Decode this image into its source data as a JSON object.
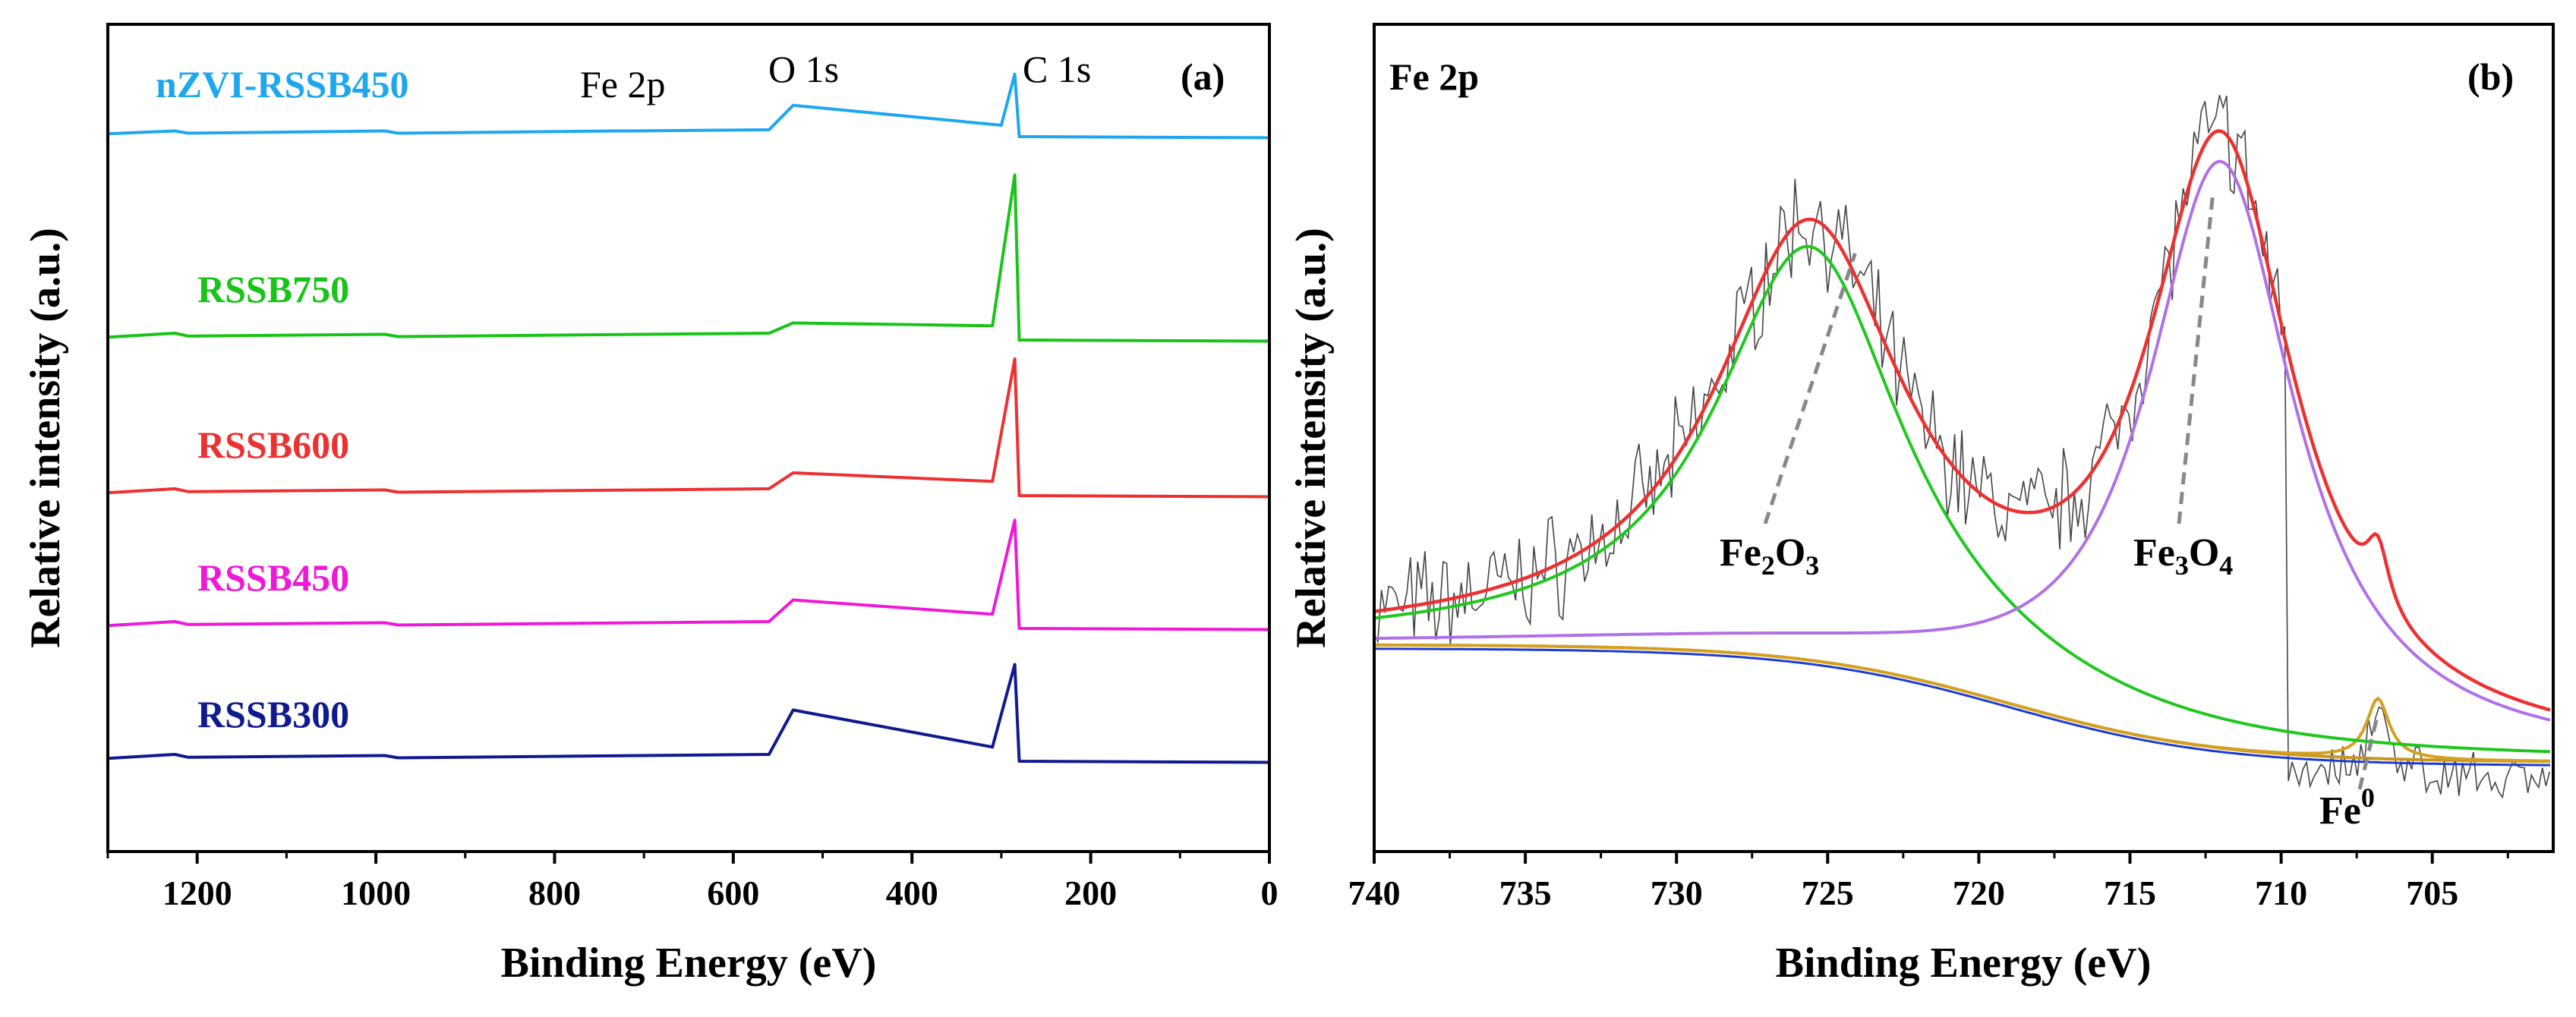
{
  "chart_data": [
    {
      "type": "line",
      "panel": "(a)",
      "xlabel": "Binding Energy (eV)",
      "ylabel": "Relative intensity (a.u.)",
      "xlim": [
        1300,
        0
      ],
      "x_ticks": [
        1200,
        1000,
        800,
        600,
        400,
        200,
        0
      ],
      "x_reversed": true,
      "series": [
        {
          "name": "nZVI-RSSB450",
          "color": "#1ea7ef",
          "offset": 4,
          "points": [
            [
              1300,
              0.05
            ],
            [
              1225,
              0.1
            ],
            [
              1210,
              0.06
            ],
            [
              990,
              0.1
            ],
            [
              975,
              0.06
            ],
            [
              730,
              0.1
            ],
            [
              710,
              0.1
            ],
            [
              560,
              0.12
            ],
            [
              533,
              0.55
            ],
            [
              300,
              0.2
            ],
            [
              285,
              1.1
            ],
            [
              280,
              0.0
            ],
            [
              0,
              -0.02
            ]
          ]
        },
        {
          "name": "RSSB750",
          "color": "#17c417",
          "offset": 3,
          "points": [
            [
              1300,
              0.05
            ],
            [
              1225,
              0.12
            ],
            [
              1210,
              0.07
            ],
            [
              990,
              0.1
            ],
            [
              975,
              0.06
            ],
            [
              560,
              0.12
            ],
            [
              533,
              0.3
            ],
            [
              310,
              0.25
            ],
            [
              285,
              2.9
            ],
            [
              280,
              0.0
            ],
            [
              0,
              -0.02
            ]
          ]
        },
        {
          "name": "RSSB600",
          "color": "#ee3030",
          "offset": 2,
          "points": [
            [
              1300,
              0.05
            ],
            [
              1225,
              0.12
            ],
            [
              1210,
              0.07
            ],
            [
              990,
              0.1
            ],
            [
              975,
              0.06
            ],
            [
              560,
              0.12
            ],
            [
              533,
              0.4
            ],
            [
              310,
              0.25
            ],
            [
              285,
              2.4
            ],
            [
              280,
              0.0
            ],
            [
              0,
              -0.02
            ]
          ]
        },
        {
          "name": "RSSB450",
          "color": "#f018d8",
          "offset": 1,
          "points": [
            [
              1300,
              0.05
            ],
            [
              1225,
              0.12
            ],
            [
              1210,
              0.07
            ],
            [
              990,
              0.1
            ],
            [
              975,
              0.06
            ],
            [
              560,
              0.12
            ],
            [
              533,
              0.5
            ],
            [
              310,
              0.25
            ],
            [
              285,
              1.9
            ],
            [
              280,
              0.0
            ],
            [
              0,
              -0.02
            ]
          ]
        },
        {
          "name": "RSSB300",
          "color": "#101a8f",
          "offset": 0,
          "points": [
            [
              1300,
              0.05
            ],
            [
              1225,
              0.12
            ],
            [
              1210,
              0.07
            ],
            [
              990,
              0.1
            ],
            [
              975,
              0.06
            ],
            [
              560,
              0.12
            ],
            [
              533,
              0.9
            ],
            [
              310,
              0.25
            ],
            [
              285,
              1.7
            ],
            [
              280,
              0.0
            ],
            [
              0,
              -0.02
            ]
          ]
        }
      ],
      "annotations": {
        "fe2p": "Fe 2p",
        "o1s": "O 1s",
        "c1s": "C 1s"
      }
    },
    {
      "type": "line",
      "panel": "(b)",
      "title": "Fe 2p",
      "xlabel": "Binding Energy (eV)",
      "ylabel": "Relative intensity (a.u.)",
      "xlim": [
        740,
        701
      ],
      "x_ticks": [
        740,
        735,
        730,
        725,
        720,
        715,
        710,
        705
      ],
      "x_reversed": true,
      "ylim": [
        0,
        1.1
      ],
      "peaks": [
        {
          "label": "Fe2O3",
          "center": 725.6,
          "height": 0.55,
          "color": "#1ec81e"
        },
        {
          "label": "Fe3O4",
          "center": 712.0,
          "height": 0.78,
          "color": "#b070e8"
        },
        {
          "label": "Fe0",
          "center": 706.8,
          "height": 0.08,
          "color": "#d4a020"
        }
      ],
      "envelope_color": "#ee3030",
      "background_color": "#c8961e",
      "baseline_color": "#1a3ad8",
      "raw_color": "#444444",
      "annotations": {
        "fe2o3": {
          "main": "Fe",
          "sub1": "2",
          "mid": "O",
          "sub2": "3"
        },
        "fe3o4": {
          "main": "Fe",
          "sub1": "3",
          "mid": "O",
          "sub2": "4"
        },
        "fe0": {
          "main": "Fe",
          "sup": "0"
        }
      }
    }
  ]
}
